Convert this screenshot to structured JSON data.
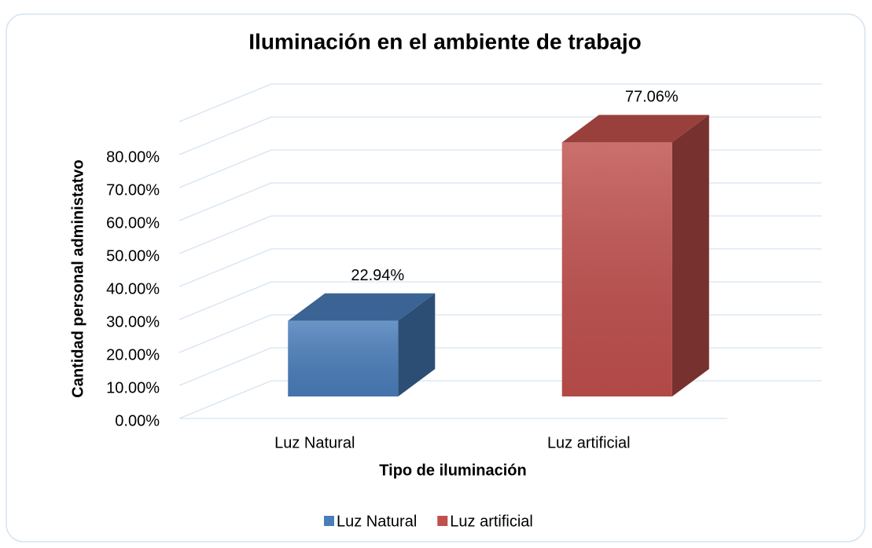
{
  "chart_data": {
    "type": "bar3d",
    "title": "Iluminación en el ambiente de trabajo",
    "x_label": "Tipo de iluminación",
    "y_label": "Cantidad personal administatvo",
    "categories": [
      "Luz Natural",
      "Luz artificial"
    ],
    "values": [
      22.94,
      77.06
    ],
    "value_labels": [
      "22.94%",
      "77.06%"
    ],
    "colors": [
      "#4a7ebb",
      "#c0504d"
    ],
    "ylim": [
      0,
      90
    ],
    "yticks": [
      {
        "value": 0,
        "label": "0.00%"
      },
      {
        "value": 10,
        "label": "10.00%"
      },
      {
        "value": 20,
        "label": "20.00%"
      },
      {
        "value": 30,
        "label": "30.00%"
      },
      {
        "value": 40,
        "label": "40.00%"
      },
      {
        "value": 50,
        "label": "50.00%"
      },
      {
        "value": 60,
        "label": "60.00%"
      },
      {
        "value": 70,
        "label": "70.00%"
      },
      {
        "value": 80,
        "label": "80.00%"
      }
    ],
    "grid": true,
    "legend": "bottom"
  }
}
